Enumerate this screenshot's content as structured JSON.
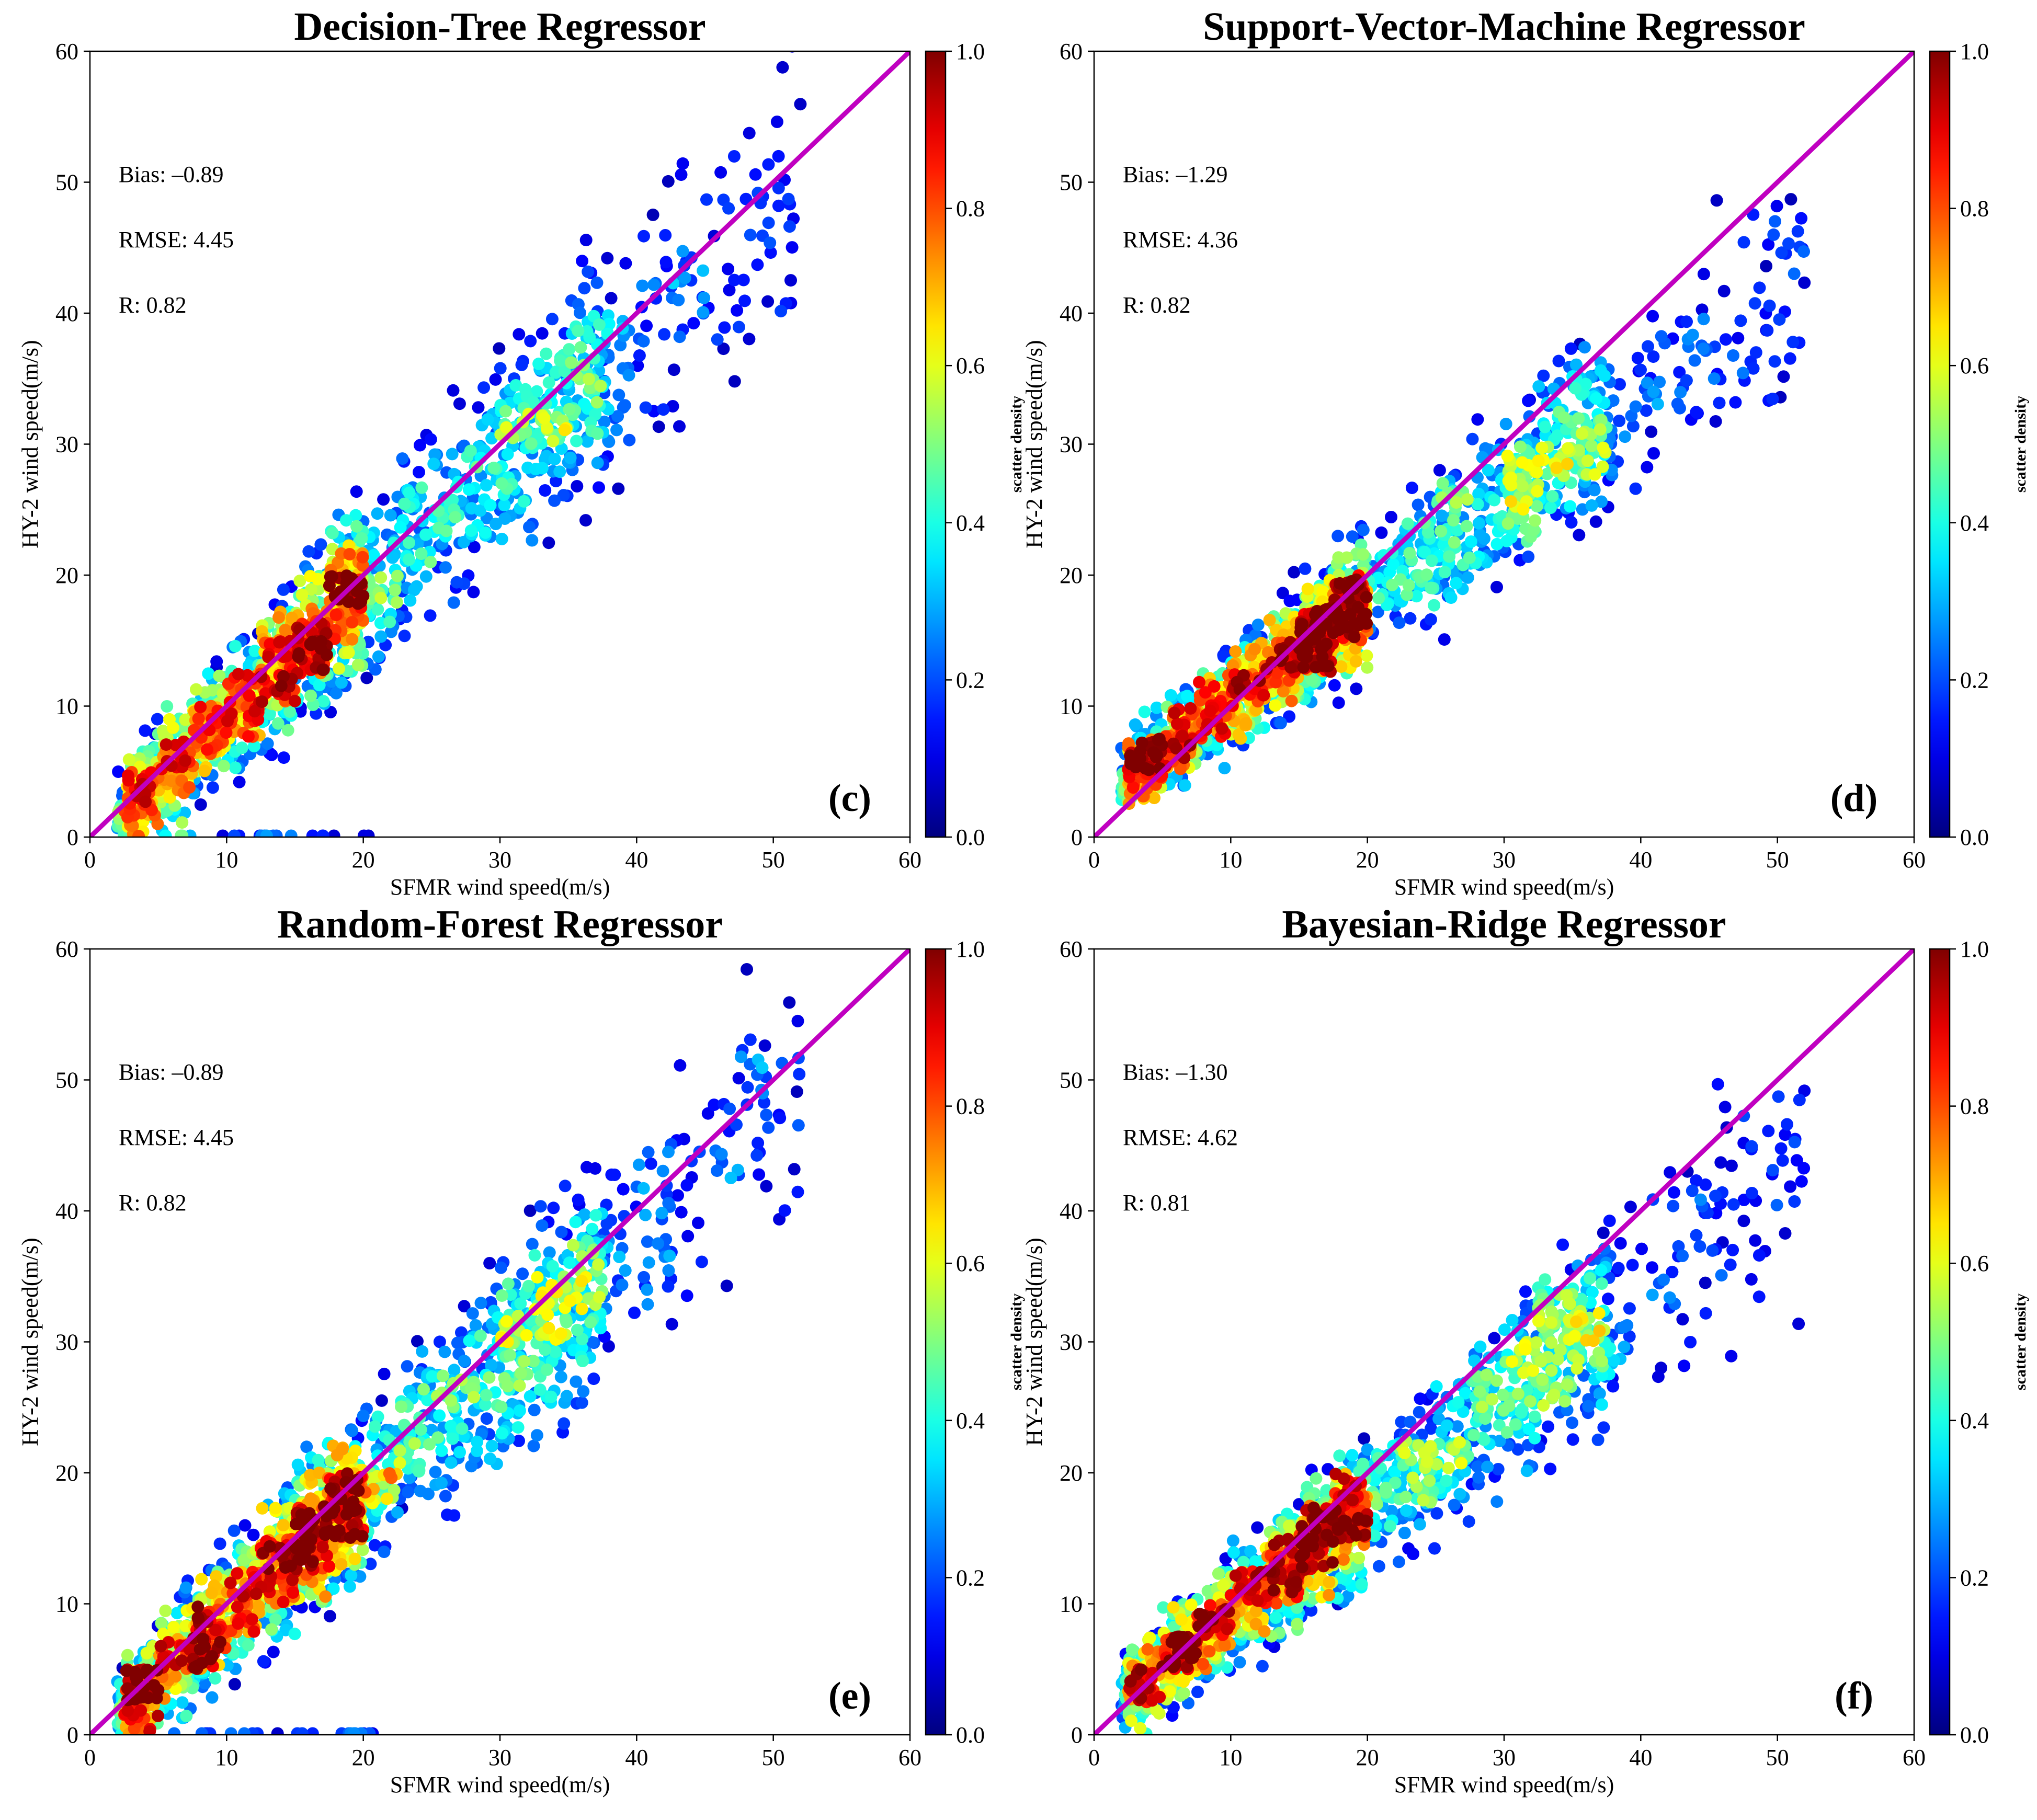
{
  "figure": {
    "colormap": "jet",
    "identity_line_color": "#C000C0"
  },
  "chart_data": [
    {
      "type": "scatter",
      "title": "Decision-Tree Regressor",
      "panel_tag": "(c)",
      "xlabel": "SFMR wind speed(m/s)",
      "ylabel": "HY-2 wind speed(m/s)",
      "xlim": [
        0,
        60
      ],
      "ylim": [
        0,
        60
      ],
      "xticks": [
        "0",
        "10",
        "20",
        "30",
        "40",
        "50",
        "60"
      ],
      "yticks": [
        "0",
        "10",
        "20",
        "30",
        "40",
        "50",
        "60"
      ],
      "stats": {
        "bias": "Bias: –0.89",
        "rmse": "RMSE: 4.45",
        "r": "R: 0.82"
      },
      "colorbar": {
        "label": "scatter density",
        "ticks": [
          "0.0",
          "0.2",
          "0.4",
          "0.6",
          "0.8",
          "1.0"
        ],
        "range": [
          0,
          1
        ]
      },
      "identity_line": {
        "x": [
          0,
          60
        ],
        "y": [
          0,
          60
        ]
      },
      "scatter_model": {
        "n": 1700,
        "slope": 0.95,
        "intercept": -0.2,
        "noise": 5.2,
        "floor": 0,
        "zero_band": [
          5,
          21
        ],
        "seed": 11
      }
    },
    {
      "type": "scatter",
      "title": "Support-Vector-Machine Regressor",
      "panel_tag": "(d)",
      "xlabel": "SFMR wind speed(m/s)",
      "ylabel": "HY-2 wind speed(m/s)",
      "xlim": [
        0,
        60
      ],
      "ylim": [
        0,
        60
      ],
      "xticks": [
        "0",
        "10",
        "20",
        "30",
        "40",
        "50",
        "60"
      ],
      "yticks": [
        "0",
        "10",
        "20",
        "30",
        "40",
        "50",
        "60"
      ],
      "stats": {
        "bias": "Bias: –1.29",
        "rmse": "RMSE: 4.36",
        "r": "R: 0.82"
      },
      "colorbar": {
        "label": "scatter density",
        "ticks": [
          "0.0",
          "0.2",
          "0.4",
          "0.6",
          "0.8",
          "1.0"
        ],
        "range": [
          0,
          1
        ]
      },
      "identity_line": {
        "x": [
          0,
          60
        ],
        "y": [
          0,
          60
        ]
      },
      "scatter_model": {
        "n": 1700,
        "slope": 0.78,
        "intercept": 2.8,
        "noise": 4.2,
        "floor": 2.5,
        "zero_band": null,
        "seed": 23
      }
    },
    {
      "type": "scatter",
      "title": "Random-Forest Regressor",
      "panel_tag": "(e)",
      "xlabel": "SFMR wind speed(m/s)",
      "ylabel": "HY-2 wind speed(m/s)",
      "xlim": [
        0,
        60
      ],
      "ylim": [
        0,
        60
      ],
      "xticks": [
        "0",
        "10",
        "20",
        "30",
        "40",
        "50",
        "60"
      ],
      "yticks": [
        "0",
        "10",
        "20",
        "30",
        "40",
        "50",
        "60"
      ],
      "stats": {
        "bias": "Bias: –0.89",
        "rmse": "RMSE: 4.45",
        "r": "R: 0.82"
      },
      "colorbar": {
        "label": "scatter density",
        "ticks": [
          "0.0",
          "0.2",
          "0.4",
          "0.6",
          "0.8",
          "1.0"
        ],
        "range": [
          0,
          1
        ]
      },
      "identity_line": {
        "x": [
          0,
          60
        ],
        "y": [
          0,
          60
        ]
      },
      "scatter_model": {
        "n": 1700,
        "slope": 0.95,
        "intercept": -0.2,
        "noise": 5.2,
        "floor": 0,
        "zero_band": [
          5,
          21
        ],
        "seed": 37
      }
    },
    {
      "type": "scatter",
      "title": "Bayesian-Ridge Regressor",
      "panel_tag": "(f)",
      "xlabel": "SFMR wind speed(m/s)",
      "ylabel": "HY-2 wind speed(m/s)",
      "xlim": [
        0,
        60
      ],
      "ylim": [
        0,
        60
      ],
      "xticks": [
        "0",
        "10",
        "20",
        "30",
        "40",
        "50",
        "60"
      ],
      "yticks": [
        "0",
        "10",
        "20",
        "30",
        "40",
        "50",
        "60"
      ],
      "stats": {
        "bias": "Bias: –1.30",
        "rmse": "RMSE: 4.62",
        "r": "R: 0.81"
      },
      "colorbar": {
        "label": "scatter density",
        "ticks": [
          "0.0",
          "0.2",
          "0.4",
          "0.6",
          "0.8",
          "1.0"
        ],
        "range": [
          0,
          1
        ]
      },
      "identity_line": {
        "x": [
          0,
          60
        ],
        "y": [
          0,
          60
        ]
      },
      "scatter_model": {
        "n": 1700,
        "slope": 0.82,
        "intercept": 1.2,
        "noise": 4.6,
        "floor": 0,
        "zero_band": null,
        "seed": 53
      }
    }
  ]
}
